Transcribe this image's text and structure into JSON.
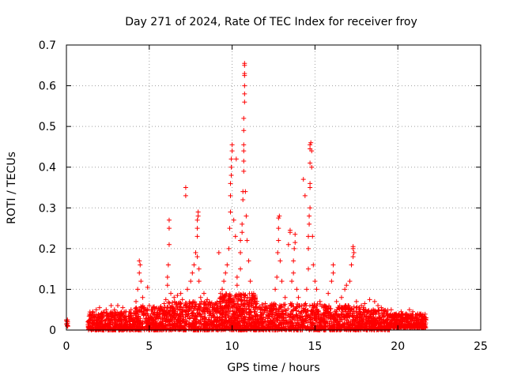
{
  "chart_data": {
    "type": "scatter",
    "title": "Day 271 of 2024, Rate Of TEC Index for receiver froy",
    "xlabel": "GPS time / hours",
    "ylabel": "ROTI / TECUs",
    "xlim": [
      0,
      25
    ],
    "ylim": [
      0,
      0.7
    ],
    "x_ticks": [
      0,
      5,
      10,
      15,
      20,
      25
    ],
    "y_ticks": [
      0,
      0.1,
      0.2,
      0.3,
      0.4,
      0.5,
      0.6,
      0.7
    ],
    "x_tick_labels": [
      "0",
      "5",
      "10",
      "15",
      "20",
      "25"
    ],
    "y_tick_labels": [
      "0",
      "0.1",
      "0.2",
      "0.3",
      "0.4",
      "0.5",
      "0.6",
      "0.7"
    ],
    "grid": true,
    "marker": "+",
    "color": "#ff0000",
    "series": [
      {
        "name": "ROTI",
        "points": [
          [
            0.0,
            0.025
          ],
          [
            0.0,
            0.015
          ],
          [
            0.05,
            0.012
          ],
          [
            1.3,
            0.02
          ],
          [
            1.4,
            0.035
          ],
          [
            1.5,
            0.03
          ],
          [
            1.6,
            0.045
          ],
          [
            1.8,
            0.05
          ],
          [
            2.0,
            0.055
          ],
          [
            2.1,
            0.04
          ],
          [
            2.4,
            0.05
          ],
          [
            2.7,
            0.06
          ],
          [
            2.9,
            0.05
          ],
          [
            3.1,
            0.06
          ],
          [
            3.4,
            0.055
          ],
          [
            3.6,
            0.045
          ],
          [
            3.9,
            0.05
          ],
          [
            4.2,
            0.07
          ],
          [
            4.3,
            0.1
          ],
          [
            4.4,
            0.14
          ],
          [
            4.4,
            0.17
          ],
          [
            4.45,
            0.16
          ],
          [
            4.5,
            0.12
          ],
          [
            4.6,
            0.08
          ],
          [
            4.9,
            0.105
          ],
          [
            5.0,
            0.06
          ],
          [
            5.3,
            0.055
          ],
          [
            5.6,
            0.05
          ],
          [
            5.9,
            0.065
          ],
          [
            6.0,
            0.075
          ],
          [
            6.1,
            0.11
          ],
          [
            6.1,
            0.13
          ],
          [
            6.15,
            0.16
          ],
          [
            6.2,
            0.21
          ],
          [
            6.2,
            0.25
          ],
          [
            6.2,
            0.27
          ],
          [
            6.3,
            0.09
          ],
          [
            6.5,
            0.08
          ],
          [
            6.7,
            0.085
          ],
          [
            6.9,
            0.09
          ],
          [
            7.0,
            0.075
          ],
          [
            7.2,
            0.35
          ],
          [
            7.2,
            0.33
          ],
          [
            7.3,
            0.1
          ],
          [
            7.5,
            0.12
          ],
          [
            7.6,
            0.14
          ],
          [
            7.7,
            0.16
          ],
          [
            7.8,
            0.19
          ],
          [
            7.9,
            0.18
          ],
          [
            7.9,
            0.23
          ],
          [
            7.9,
            0.25
          ],
          [
            7.9,
            0.27
          ],
          [
            7.95,
            0.28
          ],
          [
            7.95,
            0.29
          ],
          [
            8.0,
            0.15
          ],
          [
            8.0,
            0.12
          ],
          [
            8.1,
            0.08
          ],
          [
            8.3,
            0.09
          ],
          [
            8.5,
            0.075
          ],
          [
            8.8,
            0.06
          ],
          [
            9.0,
            0.065
          ],
          [
            9.2,
            0.19
          ],
          [
            9.3,
            0.09
          ],
          [
            9.4,
            0.1
          ],
          [
            9.5,
            0.12
          ],
          [
            9.6,
            0.14
          ],
          [
            9.7,
            0.16
          ],
          [
            9.8,
            0.2
          ],
          [
            9.85,
            0.25
          ],
          [
            9.9,
            0.29
          ],
          [
            9.9,
            0.33
          ],
          [
            9.9,
            0.36
          ],
          [
            9.95,
            0.38
          ],
          [
            9.95,
            0.4
          ],
          [
            9.95,
            0.42
          ],
          [
            10.0,
            0.44
          ],
          [
            10.0,
            0.455
          ],
          [
            10.1,
            0.27
          ],
          [
            10.2,
            0.23
          ],
          [
            10.25,
            0.42
          ],
          [
            10.3,
            0.13
          ],
          [
            10.3,
            0.11
          ],
          [
            10.5,
            0.15
          ],
          [
            10.5,
            0.19
          ],
          [
            10.5,
            0.22
          ],
          [
            10.6,
            0.24
          ],
          [
            10.6,
            0.26
          ],
          [
            10.65,
            0.32
          ],
          [
            10.65,
            0.34
          ],
          [
            10.7,
            0.39
          ],
          [
            10.7,
            0.415
          ],
          [
            10.7,
            0.44
          ],
          [
            10.7,
            0.455
          ],
          [
            10.7,
            0.49
          ],
          [
            10.7,
            0.52
          ],
          [
            10.75,
            0.56
          ],
          [
            10.75,
            0.58
          ],
          [
            10.75,
            0.6
          ],
          [
            10.75,
            0.625
          ],
          [
            10.75,
            0.63
          ],
          [
            10.75,
            0.65
          ],
          [
            10.75,
            0.655
          ],
          [
            10.8,
            0.34
          ],
          [
            10.85,
            0.28
          ],
          [
            10.9,
            0.22
          ],
          [
            11.0,
            0.17
          ],
          [
            11.1,
            0.12
          ],
          [
            11.3,
            0.09
          ],
          [
            11.5,
            0.07
          ],
          [
            11.8,
            0.05
          ],
          [
            12.0,
            0.065
          ],
          [
            12.3,
            0.04
          ],
          [
            12.5,
            0.06
          ],
          [
            12.6,
            0.1
          ],
          [
            12.7,
            0.13
          ],
          [
            12.75,
            0.19
          ],
          [
            12.8,
            0.22
          ],
          [
            12.8,
            0.25
          ],
          [
            12.8,
            0.275
          ],
          [
            12.85,
            0.28
          ],
          [
            12.9,
            0.17
          ],
          [
            13.0,
            0.12
          ],
          [
            13.2,
            0.08
          ],
          [
            13.4,
            0.21
          ],
          [
            13.5,
            0.245
          ],
          [
            13.5,
            0.24
          ],
          [
            13.6,
            0.12
          ],
          [
            13.7,
            0.14
          ],
          [
            13.7,
            0.17
          ],
          [
            13.75,
            0.2
          ],
          [
            13.8,
            0.215
          ],
          [
            13.8,
            0.235
          ],
          [
            13.9,
            0.1
          ],
          [
            14.0,
            0.08
          ],
          [
            14.2,
            0.06
          ],
          [
            14.3,
            0.37
          ],
          [
            14.4,
            0.33
          ],
          [
            14.5,
            0.1
          ],
          [
            14.6,
            0.15
          ],
          [
            14.6,
            0.2
          ],
          [
            14.6,
            0.23
          ],
          [
            14.65,
            0.26
          ],
          [
            14.65,
            0.28
          ],
          [
            14.7,
            0.3
          ],
          [
            14.7,
            0.35
          ],
          [
            14.7,
            0.36
          ],
          [
            14.7,
            0.41
          ],
          [
            14.7,
            0.445
          ],
          [
            14.7,
            0.455
          ],
          [
            14.75,
            0.46
          ],
          [
            14.8,
            0.44
          ],
          [
            14.8,
            0.4
          ],
          [
            14.85,
            0.23
          ],
          [
            14.9,
            0.16
          ],
          [
            15.0,
            0.12
          ],
          [
            15.1,
            0.1
          ],
          [
            15.3,
            0.07
          ],
          [
            15.6,
            0.05
          ],
          [
            15.8,
            0.09
          ],
          [
            16.0,
            0.12
          ],
          [
            16.1,
            0.14
          ],
          [
            16.1,
            0.16
          ],
          [
            16.3,
            0.07
          ],
          [
            16.6,
            0.08
          ],
          [
            16.8,
            0.1
          ],
          [
            16.9,
            0.11
          ],
          [
            17.0,
            0.06
          ],
          [
            17.1,
            0.12
          ],
          [
            17.2,
            0.16
          ],
          [
            17.3,
            0.18
          ],
          [
            17.3,
            0.2
          ],
          [
            17.3,
            0.205
          ],
          [
            17.35,
            0.19
          ],
          [
            17.5,
            0.07
          ],
          [
            17.8,
            0.06
          ],
          [
            18.0,
            0.065
          ],
          [
            18.3,
            0.075
          ],
          [
            18.6,
            0.07
          ],
          [
            18.8,
            0.06
          ],
          [
            19.0,
            0.055
          ],
          [
            19.3,
            0.045
          ],
          [
            19.6,
            0.05
          ],
          [
            19.9,
            0.04
          ],
          [
            20.2,
            0.045
          ],
          [
            20.5,
            0.04
          ],
          [
            20.7,
            0.05
          ],
          [
            20.9,
            0.045
          ],
          [
            21.2,
            0.04
          ],
          [
            21.5,
            0.035
          ],
          [
            21.7,
            0.03
          ],
          [
            21.7,
            0.025
          ]
        ],
        "noise_band": {
          "segments": [
            {
              "x_start": 0.0,
              "x_end": 0.1,
              "y_min": 0.008,
              "y_max": 0.025,
              "count": 8
            },
            {
              "x_start": 1.3,
              "x_end": 4.1,
              "y_min": 0.0,
              "y_max": 0.045,
              "count": 420
            },
            {
              "x_start": 4.1,
              "x_end": 6.0,
              "y_min": 0.0,
              "y_max": 0.06,
              "count": 300
            },
            {
              "x_start": 6.0,
              "x_end": 9.2,
              "y_min": 0.0,
              "y_max": 0.07,
              "count": 500
            },
            {
              "x_start": 9.2,
              "x_end": 11.5,
              "y_min": 0.0,
              "y_max": 0.09,
              "count": 500
            },
            {
              "x_start": 11.5,
              "x_end": 15.5,
              "y_min": 0.0,
              "y_max": 0.065,
              "count": 560
            },
            {
              "x_start": 15.5,
              "x_end": 18.0,
              "y_min": 0.0,
              "y_max": 0.06,
              "count": 380
            },
            {
              "x_start": 18.0,
              "x_end": 19.5,
              "y_min": 0.0,
              "y_max": 0.05,
              "count": 240
            },
            {
              "x_start": 19.5,
              "x_end": 21.7,
              "y_min": 0.005,
              "y_max": 0.04,
              "count": 320
            }
          ]
        }
      }
    ]
  }
}
